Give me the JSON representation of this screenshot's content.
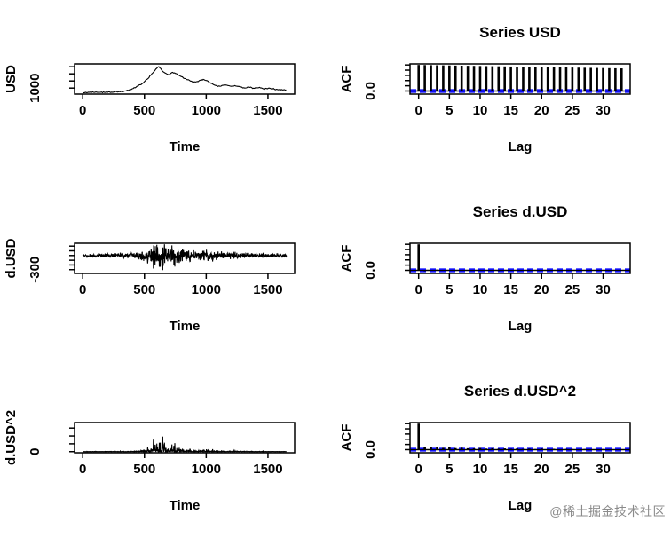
{
  "watermark": {
    "text": "@稀土掘金技术社区"
  },
  "colors": {
    "axis": "#000000",
    "series": "#000000",
    "conf_band": "#0000ff",
    "background": "#ffffff"
  },
  "chart_data": [
    {
      "id": "usd-time",
      "type": "line",
      "title": "",
      "xlabel": "Time",
      "ylabel": "USD",
      "xlim": [
        -66,
        1716
      ],
      "ylim": [
        830,
        1680
      ],
      "x_ticks": [
        0,
        500,
        1000,
        1500
      ],
      "y_ticks": [
        1000,
        1200,
        1400,
        1600
      ],
      "y_tick_labels": [
        {
          "value": 1000,
          "label": "1000"
        }
      ],
      "jitter": 12,
      "seed": 11,
      "points": [
        [
          0,
          878
        ],
        [
          30,
          880
        ],
        [
          60,
          883
        ],
        [
          90,
          881
        ],
        [
          120,
          884
        ],
        [
          150,
          883
        ],
        [
          180,
          886
        ],
        [
          210,
          885
        ],
        [
          240,
          888
        ],
        [
          270,
          890
        ],
        [
          300,
          896
        ],
        [
          330,
          905
        ],
        [
          360,
          930
        ],
        [
          390,
          960
        ],
        [
          410,
          995
        ],
        [
          430,
          1030
        ],
        [
          450,
          1065
        ],
        [
          470,
          1105
        ],
        [
          490,
          1150
        ],
        [
          510,
          1215
        ],
        [
          530,
          1285
        ],
        [
          550,
          1360
        ],
        [
          570,
          1430
        ],
        [
          590,
          1515
        ],
        [
          605,
          1585
        ],
        [
          615,
          1605
        ],
        [
          625,
          1575
        ],
        [
          640,
          1500
        ],
        [
          655,
          1445
        ],
        [
          670,
          1415
        ],
        [
          685,
          1390
        ],
        [
          700,
          1375
        ],
        [
          715,
          1405
        ],
        [
          730,
          1440
        ],
        [
          745,
          1425
        ],
        [
          760,
          1395
        ],
        [
          775,
          1360
        ],
        [
          790,
          1330
        ],
        [
          810,
          1300
        ],
        [
          830,
          1265
        ],
        [
          850,
          1235
        ],
        [
          870,
          1205
        ],
        [
          890,
          1175
        ],
        [
          910,
          1160
        ],
        [
          930,
          1185
        ],
        [
          950,
          1215
        ],
        [
          970,
          1240
        ],
        [
          985,
          1235
        ],
        [
          1000,
          1210
        ],
        [
          1015,
          1185
        ],
        [
          1030,
          1155
        ],
        [
          1050,
          1120
        ],
        [
          1070,
          1090
        ],
        [
          1090,
          1065
        ],
        [
          1110,
          1050
        ],
        [
          1130,
          1070
        ],
        [
          1150,
          1085
        ],
        [
          1170,
          1072
        ],
        [
          1190,
          1055
        ],
        [
          1210,
          1048
        ],
        [
          1230,
          1065
        ],
        [
          1250,
          1052
        ],
        [
          1270,
          1035
        ],
        [
          1290,
          1018
        ],
        [
          1310,
          1005
        ],
        [
          1330,
          1015
        ],
        [
          1350,
          1025
        ],
        [
          1370,
          1008
        ],
        [
          1390,
          995
        ],
        [
          1410,
          1005
        ],
        [
          1430,
          1015
        ],
        [
          1450,
          995
        ],
        [
          1470,
          978
        ],
        [
          1490,
          988
        ],
        [
          1510,
          1000
        ],
        [
          1530,
          988
        ],
        [
          1550,
          972
        ],
        [
          1570,
          955
        ],
        [
          1590,
          945
        ],
        [
          1610,
          955
        ],
        [
          1630,
          942
        ],
        [
          1650,
          938
        ]
      ]
    },
    {
      "id": "acf-usd",
      "type": "acf",
      "title": "Series USD",
      "xlabel": "Lag",
      "ylabel": "ACF",
      "xlim": [
        -1.4,
        34.4
      ],
      "ylim": [
        -0.12,
        1.04
      ],
      "x_ticks": [
        0,
        5,
        10,
        15,
        20,
        25,
        30
      ],
      "y_ticks": [
        0,
        0.2,
        0.4,
        0.6,
        0.8,
        1.0
      ],
      "y_tick_labels": [
        {
          "value": 0,
          "label": "0.0"
        }
      ],
      "conf": 0.047,
      "values": [
        1.0,
        0.996,
        0.992,
        0.988,
        0.984,
        0.98,
        0.976,
        0.972,
        0.968,
        0.964,
        0.96,
        0.956,
        0.952,
        0.948,
        0.944,
        0.94,
        0.936,
        0.932,
        0.928,
        0.924,
        0.92,
        0.916,
        0.912,
        0.908,
        0.904,
        0.9,
        0.896,
        0.892,
        0.888,
        0.884,
        0.88,
        0.876,
        0.872,
        0.868
      ]
    },
    {
      "id": "dusd-time",
      "type": "noise-line",
      "title": "",
      "xlabel": "Time",
      "ylabel": "d.USD",
      "xlim": [
        -66,
        1716
      ],
      "ylim": [
        -380,
        260
      ],
      "x_ticks": [
        0,
        500,
        1000,
        1500
      ],
      "y_ticks": [
        -300,
        -200,
        -100,
        0,
        100,
        200
      ],
      "y_tick_labels": [
        {
          "value": -300,
          "label": "-300"
        }
      ],
      "seed": 20,
      "step": 2,
      "x_range": [
        0,
        1650
      ],
      "clamp": [
        -355,
        240
      ],
      "square": false,
      "envelope": [
        [
          0,
          30
        ],
        [
          350,
          35
        ],
        [
          420,
          60
        ],
        [
          480,
          110
        ],
        [
          520,
          160
        ],
        [
          560,
          200
        ],
        [
          620,
          230
        ],
        [
          680,
          210
        ],
        [
          740,
          170
        ],
        [
          800,
          120
        ],
        [
          860,
          90
        ],
        [
          920,
          70
        ],
        [
          980,
          85
        ],
        [
          1040,
          95
        ],
        [
          1100,
          75
        ],
        [
          1160,
          60
        ],
        [
          1220,
          70
        ],
        [
          1280,
          50
        ],
        [
          1340,
          45
        ],
        [
          1400,
          40
        ],
        [
          1460,
          45
        ],
        [
          1520,
          38
        ],
        [
          1580,
          35
        ],
        [
          1650,
          32
        ]
      ]
    },
    {
      "id": "acf-dusd",
      "type": "acf",
      "title": "Series d.USD",
      "xlabel": "Lag",
      "ylabel": "ACF",
      "xlim": [
        -1.4,
        34.4
      ],
      "ylim": [
        -0.12,
        1.04
      ],
      "x_ticks": [
        0,
        5,
        10,
        15,
        20,
        25,
        30
      ],
      "y_ticks": [
        0,
        0.2,
        0.4,
        0.6,
        0.8,
        1.0
      ],
      "y_tick_labels": [
        {
          "value": 0,
          "label": "0.0"
        }
      ],
      "conf": 0.047,
      "values": [
        1.0,
        -0.031,
        0.012,
        0.024,
        -0.018,
        0.008,
        -0.022,
        0.015,
        0.006,
        -0.012,
        0.019,
        -0.008,
        0.011,
        -0.025,
        0.009,
        0.016,
        -0.011,
        0.004,
        0.021,
        -0.016,
        0.007,
        -0.019,
        0.013,
        0.01,
        -0.006,
        0.017,
        -0.013,
        0.005,
        0.02,
        -0.009,
        0.014,
        -0.021,
        0.008,
        0.012
      ]
    },
    {
      "id": "dusd2-time",
      "type": "noise-line",
      "title": "",
      "xlabel": "Time",
      "ylabel": "d.USD^2",
      "xlim": [
        -66,
        1716
      ],
      "ylim": [
        -7000,
        185000
      ],
      "x_ticks": [
        0,
        500,
        1000,
        1500
      ],
      "y_ticks": [
        0,
        50000,
        100000,
        150000
      ],
      "y_tick_labels": [
        {
          "value": 0,
          "label": "0"
        }
      ],
      "seed": 20,
      "step": 2,
      "x_range": [
        0,
        1650
      ],
      "clamp": [
        -355,
        240
      ],
      "square": true,
      "envelope": [
        [
          0,
          30
        ],
        [
          350,
          35
        ],
        [
          420,
          60
        ],
        [
          480,
          110
        ],
        [
          520,
          160
        ],
        [
          560,
          200
        ],
        [
          620,
          230
        ],
        [
          680,
          210
        ],
        [
          740,
          170
        ],
        [
          800,
          120
        ],
        [
          860,
          90
        ],
        [
          920,
          70
        ],
        [
          980,
          85
        ],
        [
          1040,
          95
        ],
        [
          1100,
          75
        ],
        [
          1160,
          60
        ],
        [
          1220,
          70
        ],
        [
          1280,
          50
        ],
        [
          1340,
          45
        ],
        [
          1400,
          40
        ],
        [
          1460,
          45
        ],
        [
          1520,
          38
        ],
        [
          1580,
          35
        ],
        [
          1650,
          32
        ]
      ]
    },
    {
      "id": "acf-dusd2",
      "type": "acf",
      "title": "Series d.USD^2",
      "xlabel": "Lag",
      "ylabel": "ACF",
      "xlim": [
        -1.4,
        34.4
      ],
      "ylim": [
        -0.12,
        1.04
      ],
      "x_ticks": [
        0,
        5,
        10,
        15,
        20,
        25,
        30
      ],
      "y_ticks": [
        0,
        0.2,
        0.4,
        0.6,
        0.8,
        1.0
      ],
      "y_tick_labels": [
        {
          "value": 0,
          "label": "0.0"
        }
      ],
      "conf": 0.047,
      "values": [
        1.0,
        0.118,
        0.093,
        0.104,
        0.072,
        0.086,
        0.061,
        0.078,
        0.055,
        0.047,
        0.066,
        0.042,
        0.058,
        0.036,
        0.049,
        0.031,
        0.044,
        0.027,
        0.038,
        0.024,
        0.041,
        0.02,
        0.033,
        0.017,
        0.029,
        0.022,
        0.014,
        0.026,
        0.011,
        0.018,
        0.024,
        0.009,
        0.015,
        0.012
      ]
    }
  ]
}
